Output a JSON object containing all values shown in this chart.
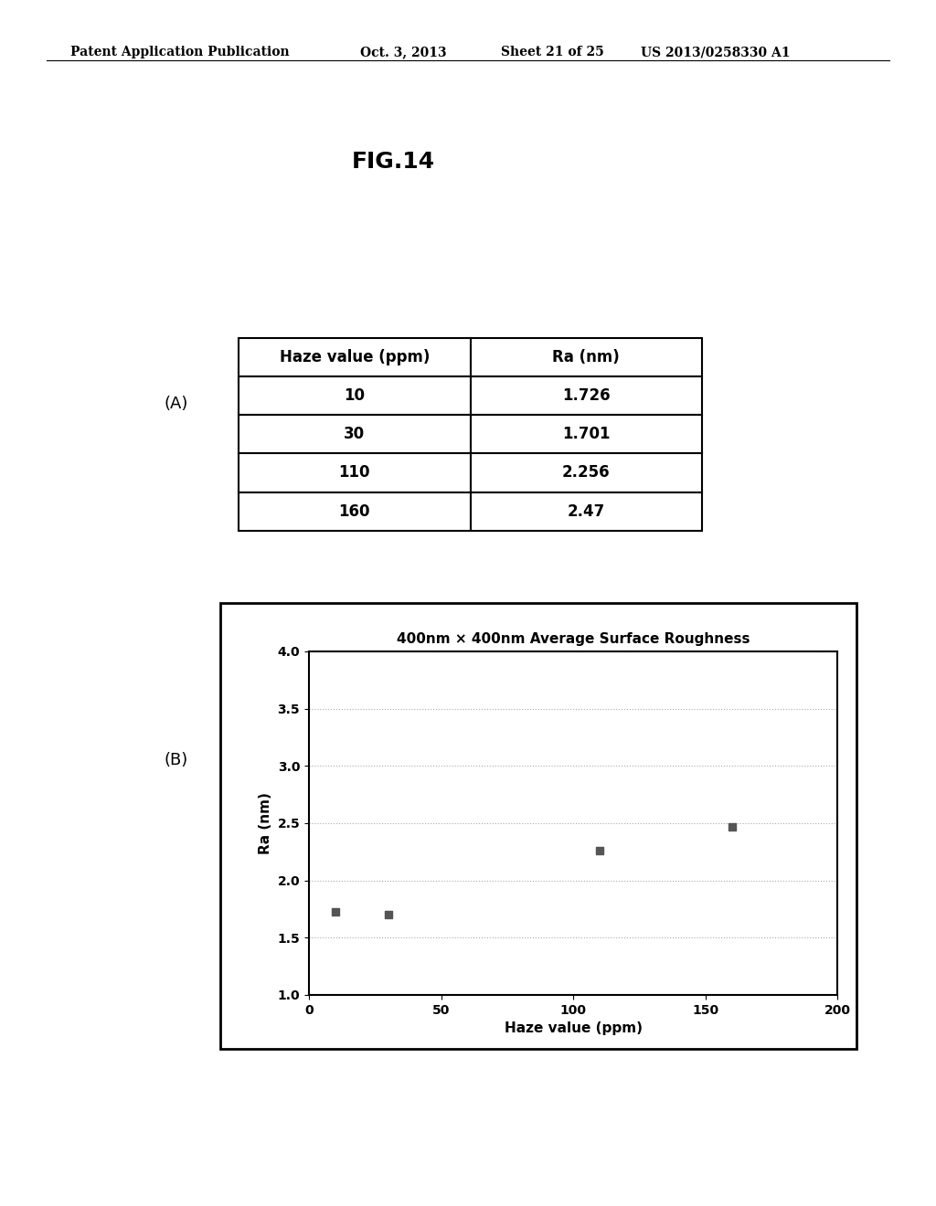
{
  "patent_header_left": "Patent Application Publication",
  "patent_header_date": "Oct. 3, 2013",
  "patent_header_sheet": "Sheet 21 of 25",
  "patent_header_right": "US 2013/0258330 A1",
  "fig_label": "FIG.14",
  "label_A": "(A)",
  "label_B": "(B)",
  "table_headers": [
    "Haze value (ppm)",
    "Ra (nm)"
  ],
  "table_data": [
    [
      "10",
      "1.726"
    ],
    [
      "30",
      "1.701"
    ],
    [
      "110",
      "2.256"
    ],
    [
      "160",
      "2.47"
    ]
  ],
  "scatter_x": [
    10,
    30,
    110,
    160
  ],
  "scatter_y": [
    1.726,
    1.701,
    2.256,
    2.47
  ],
  "chart_title": "400nm × 400nm Average Surface Roughness",
  "xlabel": "Haze value (ppm)",
  "ylabel": "Ra (nm)",
  "xlim": [
    0,
    200
  ],
  "ylim": [
    1,
    4
  ],
  "yticks": [
    1,
    1.5,
    2,
    2.5,
    3,
    3.5,
    4
  ],
  "xticks": [
    0,
    50,
    100,
    150,
    200
  ],
  "background_color": "#ffffff",
  "marker_color": "#555555",
  "grid_color": "#aaaaaa",
  "header_fontsize": 10,
  "fig_label_fontsize": 18,
  "label_AB_fontsize": 13,
  "table_fontsize": 12,
  "chart_title_fontsize": 11,
  "axis_label_fontsize": 11,
  "tick_fontsize": 10
}
